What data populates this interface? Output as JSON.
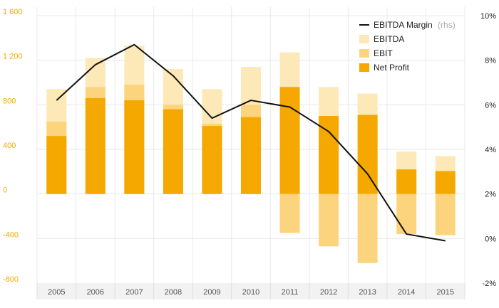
{
  "chart_data": {
    "type": "bar",
    "categories": [
      "2005",
      "2006",
      "2007",
      "2008",
      "2009",
      "2010",
      "2011",
      "2012",
      "2013",
      "2014",
      "2015"
    ],
    "series": [
      {
        "name": "EBITDA",
        "type": "bar",
        "color": "#fde8b8",
        "values": [
          940,
          1220,
          1330,
          1120,
          940,
          1140,
          1270,
          960,
          900,
          380,
          340
        ]
      },
      {
        "name": "EBIT",
        "type": "bar",
        "color": "#fdd47e",
        "values": [
          650,
          960,
          980,
          800,
          630,
          800,
          -350,
          -470,
          -620,
          -360,
          -370
        ]
      },
      {
        "name": "Net Profit",
        "type": "bar",
        "color": "#f5a800",
        "values": [
          520,
          860,
          840,
          760,
          610,
          690,
          960,
          700,
          710,
          220,
          205
        ]
      },
      {
        "name": "EBITDA Margin",
        "name_suffix": "(rhs)",
        "type": "line",
        "axis": "right",
        "color": "#111111",
        "values": [
          6.2,
          7.8,
          8.7,
          7.3,
          5.4,
          6.2,
          5.9,
          4.8,
          2.9,
          0.2,
          -0.1
        ]
      }
    ],
    "left_axis": {
      "min": -800,
      "max": 1600,
      "ticks": [
        -800,
        -400,
        0,
        400,
        800,
        1200,
        1600
      ],
      "tick_labels": [
        "-800",
        "-400",
        "0",
        "400",
        "800",
        "1 200",
        "1 600"
      ]
    },
    "right_axis": {
      "min": -2,
      "max": 10,
      "ticks": [
        -2,
        0,
        2,
        4,
        6,
        8,
        10
      ],
      "tick_labels": [
        "-2%",
        "0%",
        "2%",
        "4%",
        "6%",
        "8%",
        "10%"
      ]
    },
    "grid": true,
    "legend_position": "top-right",
    "colors": {
      "left_tick": "#f5a800",
      "right_tick": "#222222",
      "grid": "#e8e8e8",
      "axis_band": "#f2f2f2"
    }
  }
}
